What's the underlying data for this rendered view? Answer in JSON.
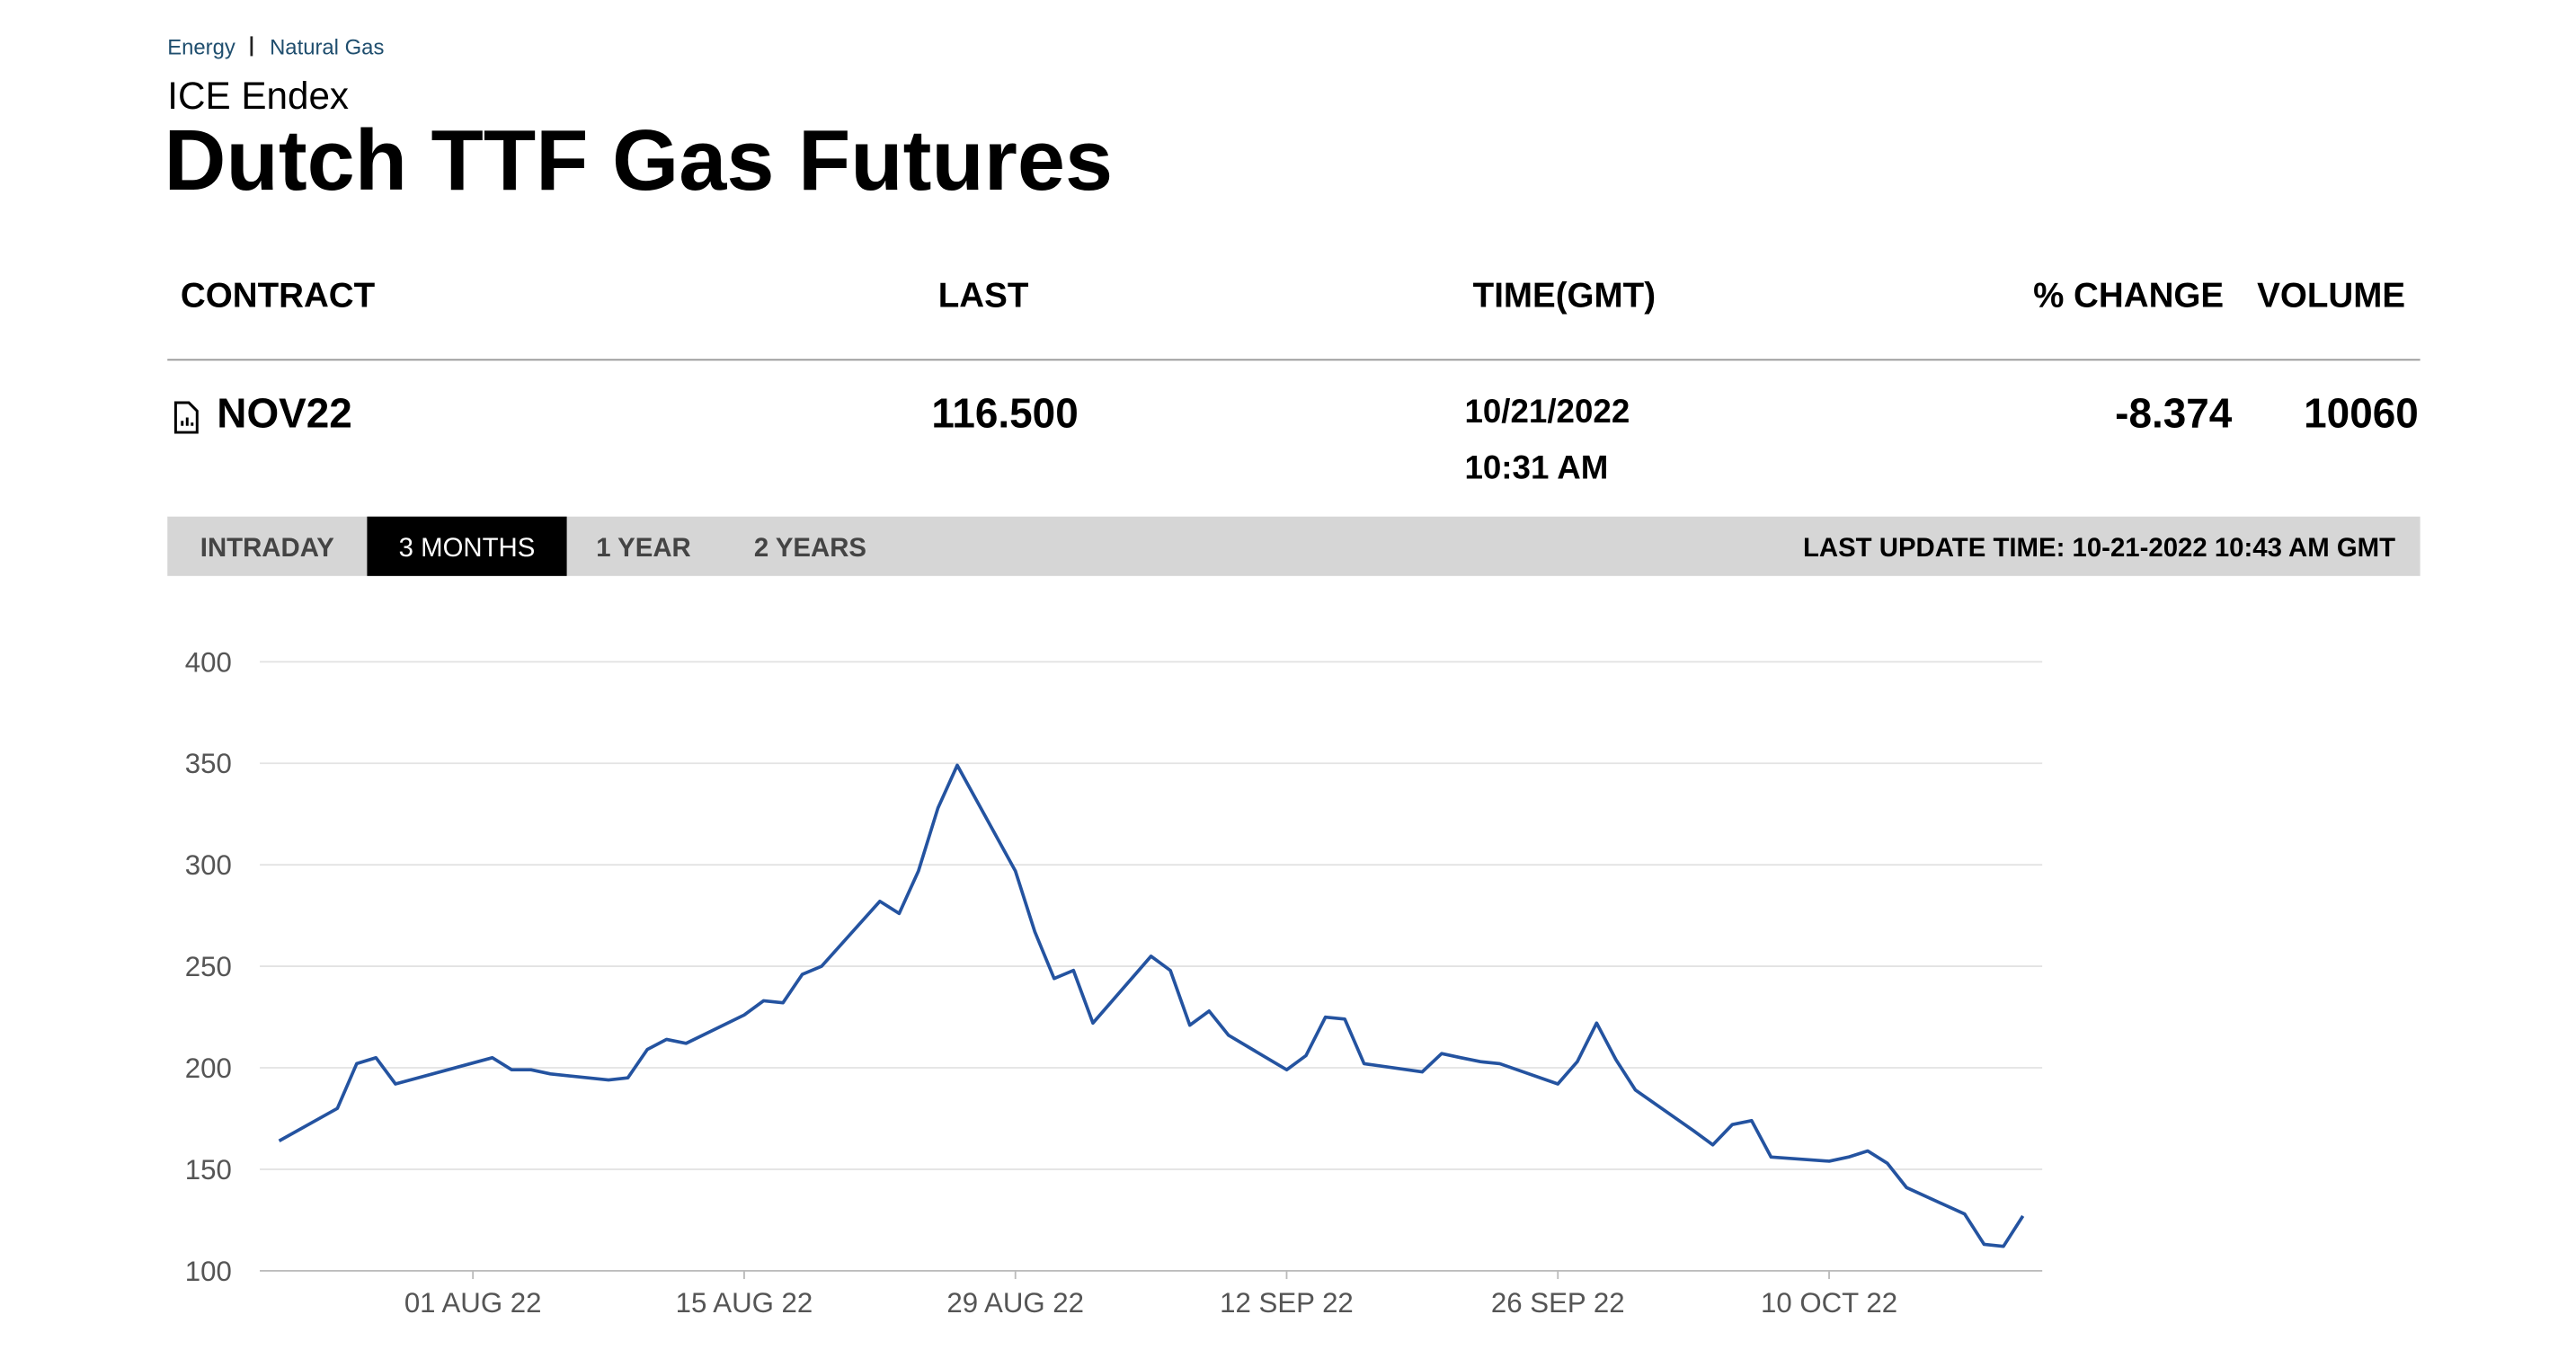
{
  "header": {
    "breadcrumb": [
      "Energy",
      "Natural Gas"
    ],
    "exchange": "ICE Endex",
    "title": "Dutch TTF Gas Futures"
  },
  "table": {
    "columns": [
      "CONTRACT",
      "LAST",
      "TIME(GMT)",
      "% CHANGE",
      "VOLUME"
    ],
    "rows": [
      {
        "contract": "NOV22",
        "last": "116.500",
        "date": "10/21/2022",
        "time": "10:31 AM",
        "change": "-8.374",
        "volume": "10060"
      }
    ]
  },
  "tabs": {
    "items": [
      "INTRADAY",
      "3 MONTHS",
      "1 YEAR",
      "2 YEARS"
    ],
    "selected": 1,
    "last_update": "LAST UPDATE TIME: 10-21-2022 10:43 AM GMT"
  },
  "chart_data": {
    "type": "line",
    "x": [
      "2022-07-22",
      "2022-07-25",
      "2022-07-26",
      "2022-07-27",
      "2022-07-28",
      "2022-08-02",
      "2022-08-03",
      "2022-08-04",
      "2022-08-05",
      "2022-08-08",
      "2022-08-09",
      "2022-08-10",
      "2022-08-11",
      "2022-08-12",
      "2022-08-15",
      "2022-08-16",
      "2022-08-17",
      "2022-08-18",
      "2022-08-19",
      "2022-08-22",
      "2022-08-23",
      "2022-08-24",
      "2022-08-25",
      "2022-08-26",
      "2022-08-29",
      "2022-08-30",
      "2022-08-31",
      "2022-09-01",
      "2022-09-02",
      "2022-09-05",
      "2022-09-06",
      "2022-09-07",
      "2022-09-08",
      "2022-09-09",
      "2022-09-12",
      "2022-09-13",
      "2022-09-14",
      "2022-09-15",
      "2022-09-16",
      "2022-09-19",
      "2022-09-20",
      "2022-09-21",
      "2022-09-22",
      "2022-09-23",
      "2022-09-26",
      "2022-09-27",
      "2022-09-28",
      "2022-09-29",
      "2022-09-30",
      "2022-10-03",
      "2022-10-04",
      "2022-10-05",
      "2022-10-06",
      "2022-10-07",
      "2022-10-10",
      "2022-10-11",
      "2022-10-12",
      "2022-10-13",
      "2022-10-14",
      "2022-10-17",
      "2022-10-18",
      "2022-10-19",
      "2022-10-20"
    ],
    "values": [
      164,
      180,
      202,
      205,
      192,
      205,
      199,
      199,
      197,
      194,
      195,
      209,
      214,
      212,
      226,
      233,
      232,
      246,
      250,
      282,
      276,
      297,
      328,
      349,
      297,
      267,
      244,
      248,
      222,
      255,
      248,
      221,
      228,
      216,
      199,
      206,
      225,
      224,
      202,
      198,
      207,
      205,
      203,
      202,
      192,
      203,
      222,
      204,
      189,
      169,
      162,
      172,
      174,
      156,
      154,
      156,
      159,
      153,
      141,
      128,
      113,
      112,
      127
    ],
    "color": "#2453a0",
    "xlim": [
      "2022-07-21",
      "2022-10-21"
    ],
    "xticks": [
      {
        "value": "2022-08-01",
        "label": "01 AUG 22"
      },
      {
        "value": "2022-08-15",
        "label": "15 AUG 22"
      },
      {
        "value": "2022-08-29",
        "label": "29 AUG 22"
      },
      {
        "value": "2022-09-12",
        "label": "12 SEP 22"
      },
      {
        "value": "2022-09-26",
        "label": "26 SEP 22"
      },
      {
        "value": "2022-10-10",
        "label": "10 OCT 22"
      }
    ],
    "ylim": [
      100,
      400
    ],
    "yticks": [
      100,
      150,
      200,
      250,
      300,
      350,
      400
    ],
    "grid": true
  }
}
